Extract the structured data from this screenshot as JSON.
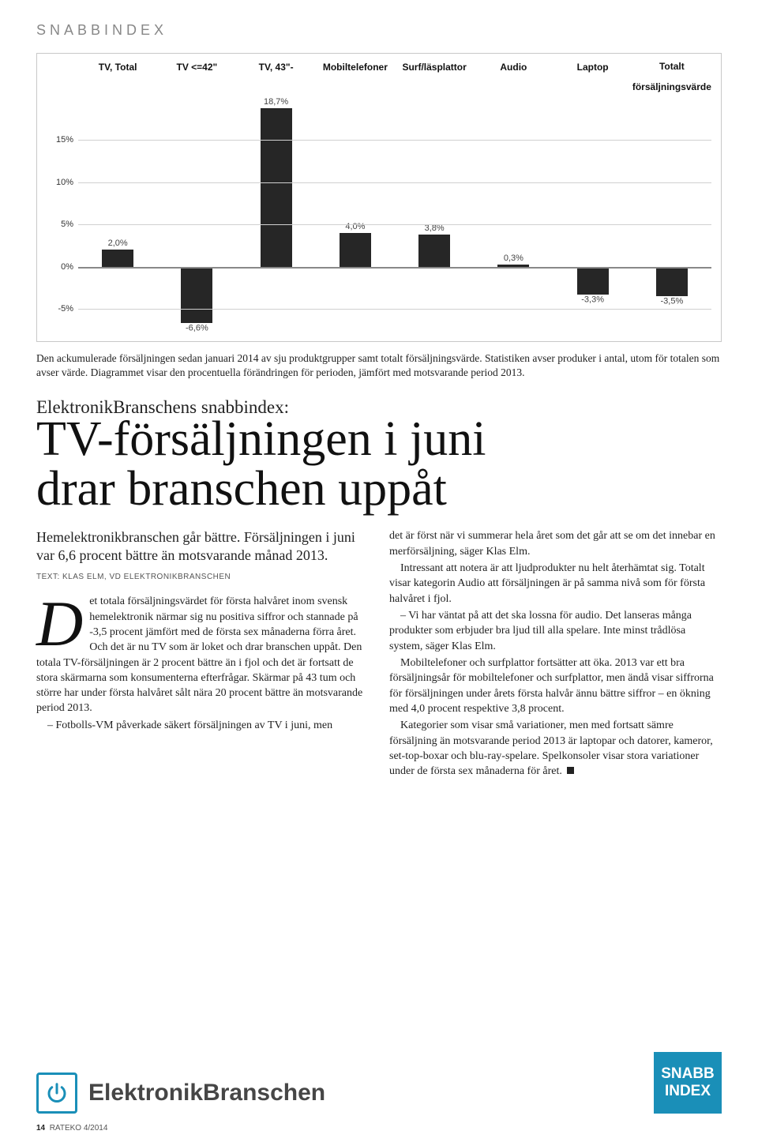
{
  "section_title": "SNABBINDEX",
  "chart": {
    "type": "bar",
    "categories": [
      "TV, Total",
      "TV <=42\"",
      "TV, 43\"-",
      "Mobiltelefoner",
      "Surf/läsplattor",
      "Audio",
      "Laptop",
      "Totalt försäljningsvärde"
    ],
    "values": [
      2.0,
      -6.6,
      18.7,
      4.0,
      3.8,
      0.3,
      -3.3,
      -3.5
    ],
    "value_labels": [
      "2,0%",
      "-6,6%",
      "18,7%",
      "4,0%",
      "3,8%",
      "0,3%",
      "-3,3%",
      "-3,5%"
    ],
    "bar_color": "#262626",
    "y_ticks": [
      -5,
      0,
      5,
      10,
      15
    ],
    "y_tick_labels": [
      "-5%",
      "0%",
      "5%",
      "10%",
      "15%"
    ],
    "y_min": -8,
    "y_max": 20,
    "grid_color": "#d0d0d0",
    "border_color": "#c8c8c8",
    "label_fontsize": 11,
    "header_fontsize": 12,
    "background_color": "#ffffff"
  },
  "caption": "Den ackumulerade försäljningen sedan januari 2014 av sju produktgrupper samt totalt försäljningsvärde. Statistiken avser produker i antal, utom för totalen som avser värde. Diagrammet visar den procentuella förändringen för perioden, jämfört med motsvarande period 2013.",
  "kicker": "ElektronikBranschens snabbindex:",
  "headline_l1": "TV-försäljningen i juni",
  "headline_l2": "drar branschen uppåt",
  "intro": "Hemelektronikbranschen går bättre. Försäljningen i juni var 6,6 procent bättre än motsvarande månad 2013.",
  "byline": "TEXT: KLAS ELM, VD ELEKTRONIKBRANSCHEN",
  "body_left": [
    "et totala försäljningsvärdet för första halvåret inom svensk hemelektronik närmar sig nu positiva siffror och stannade på -3,5 procent jämfört med de första sex månaderna förra året. Och det är nu TV som är loket och drar branschen uppåt. Den totala TV-försäljningen är 2 procent bättre än i fjol och det är fortsatt de stora skärmarna som konsumenterna efterfrågar. Skärmar på 43 tum och större har under första halvåret sålt nära 20 procent bättre än motsvarande period 2013.",
    "– Fotbolls-VM påverkade säkert försäljningen av TV i juni, men"
  ],
  "body_right": [
    "det är först när vi summerar hela året som det går att se om det innebar en merförsäljning, säger Klas Elm.",
    "Intressant att notera är att ljudprodukter nu helt återhämtat sig. Totalt visar kategorin Audio att försäljningen är på samma nivå som för första halvåret i fjol.",
    "– Vi har väntat på att det ska lossna för audio. Det lanseras många produkter som erbjuder bra ljud till alla spelare. Inte minst trådlösa system, säger Klas Elm.",
    "Mobiltelefoner och surfplattor fortsätter att öka. 2013 var ett bra försäljningsår för mobiltelefoner och surfplattor, men ändå visar siffrorna för försäljningen under årets första halvår ännu bättre siffror – en ökning med 4,0 procent respektive 3,8 procent.",
    "Kategorier som visar små variationer, men med fortsatt sämre försäljning än motsvarande period 2013 är laptopar och datorer, kameror, set-top-boxar och blu-ray-spelare. Spelkonsoler visar stora variationer under de första sex månaderna för året."
  ],
  "brand_text": "ElektronikBranschen",
  "badge_l1": "SNABB",
  "badge_l2": "INDEX",
  "page_num": "14",
  "page_pub": "RATEKO 4/2014",
  "colors": {
    "accent": "#1a8fb8",
    "text": "#222222",
    "section_title": "#888888",
    "brand_grey": "#464646"
  }
}
